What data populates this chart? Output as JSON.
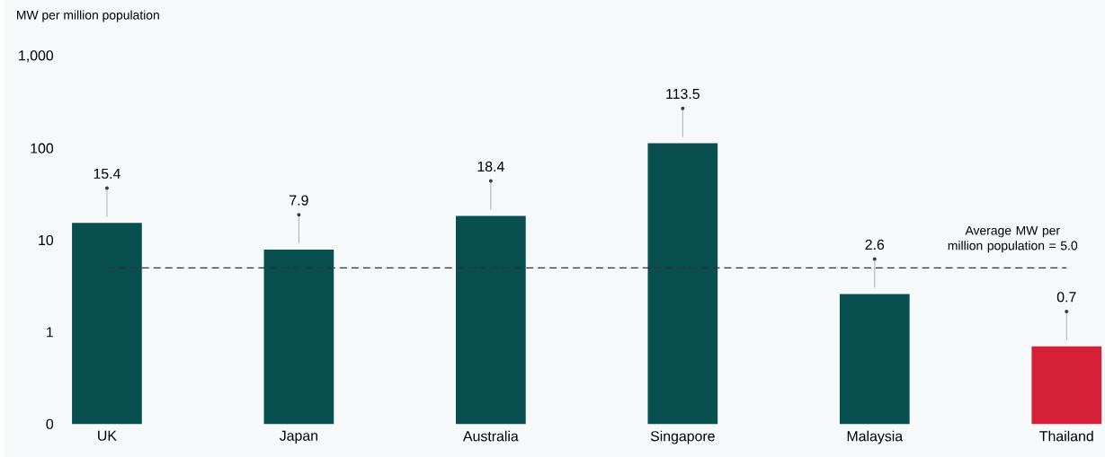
{
  "chart_data": {
    "type": "bar",
    "ylabel": "MW per million population",
    "categories": [
      "UK",
      "Japan",
      "Australia",
      "Singapore",
      "Malaysia",
      "Thailand"
    ],
    "values": [
      15.4,
      7.9,
      18.4,
      113.5,
      2.6,
      0.7
    ],
    "colors": [
      "#0a4f4f",
      "#0a4f4f",
      "#0a4f4f",
      "#0a4f4f",
      "#0a4f4f",
      "#d52038"
    ],
    "log": "y",
    "ylim": [
      0.1,
      1000
    ],
    "yticks": [
      {
        "value": 0.1,
        "label": "0"
      },
      1,
      10,
      100,
      {
        "value": 1000,
        "label": "1,000"
      }
    ],
    "data_labels": true,
    "ref_lines": [
      {
        "axis": "y",
        "value": 5.0,
        "label": "Average MW per million population = 5.0",
        "color": "#333333",
        "line_style": "dashed"
      }
    ]
  }
}
